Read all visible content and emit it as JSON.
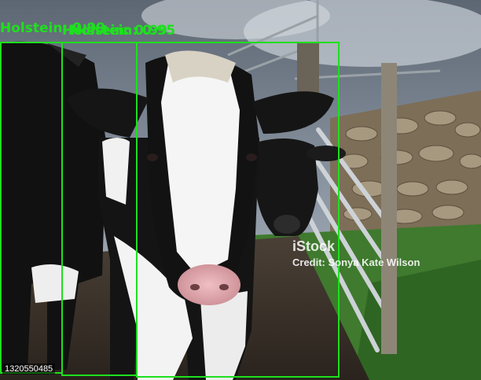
{
  "image": {
    "description_icon": "holstein-cows-photo"
  },
  "detections": [
    {
      "label": "Holstein",
      "score": "0.99",
      "text": "Holstein: 0.99"
    },
    {
      "label": "Holstein",
      "score": "0.99",
      "text": "Holstein: 0.99"
    },
    {
      "label": "Holstein",
      "score": "0.95",
      "text": "Holstein: 0.95"
    }
  ],
  "watermark": {
    "logo": "iStock",
    "credit": "Credit: Sonya Kate Wilson"
  },
  "image_id": "1320550485",
  "colors": {
    "box": "#1ee01e"
  }
}
